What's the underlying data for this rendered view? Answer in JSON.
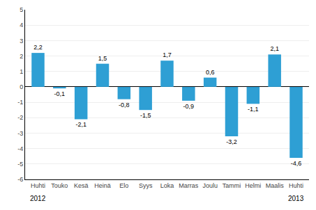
{
  "chart_data": {
    "type": "bar",
    "categories": [
      "Huhti",
      "Touko",
      "Kesä",
      "Heinä",
      "Elo",
      "Syys",
      "Loka",
      "Marras",
      "Joulu",
      "Tammi",
      "Helmi",
      "Maalis",
      "Huhti"
    ],
    "values": [
      2.2,
      -0.1,
      -2.1,
      1.5,
      -0.8,
      -1.5,
      1.7,
      -0.9,
      0.6,
      -3.2,
      -1.1,
      2.1,
      -4.6
    ],
    "value_labels": [
      "2,2",
      "-0,1",
      "-2,1",
      "1,5",
      "-0,8",
      "-1,5",
      "1,7",
      "-0,9",
      "0,6",
      "-3,2",
      "-1,1",
      "2,1",
      "-4,6"
    ],
    "data_labels": true,
    "color": "#2E9FD4",
    "ylim": [
      -6,
      5
    ],
    "yticks": [
      -6,
      -5,
      -4,
      -3,
      -2,
      -1,
      0,
      1,
      2,
      3,
      4,
      5
    ],
    "grid": true,
    "annotations": [
      "2012",
      "2013"
    ]
  }
}
